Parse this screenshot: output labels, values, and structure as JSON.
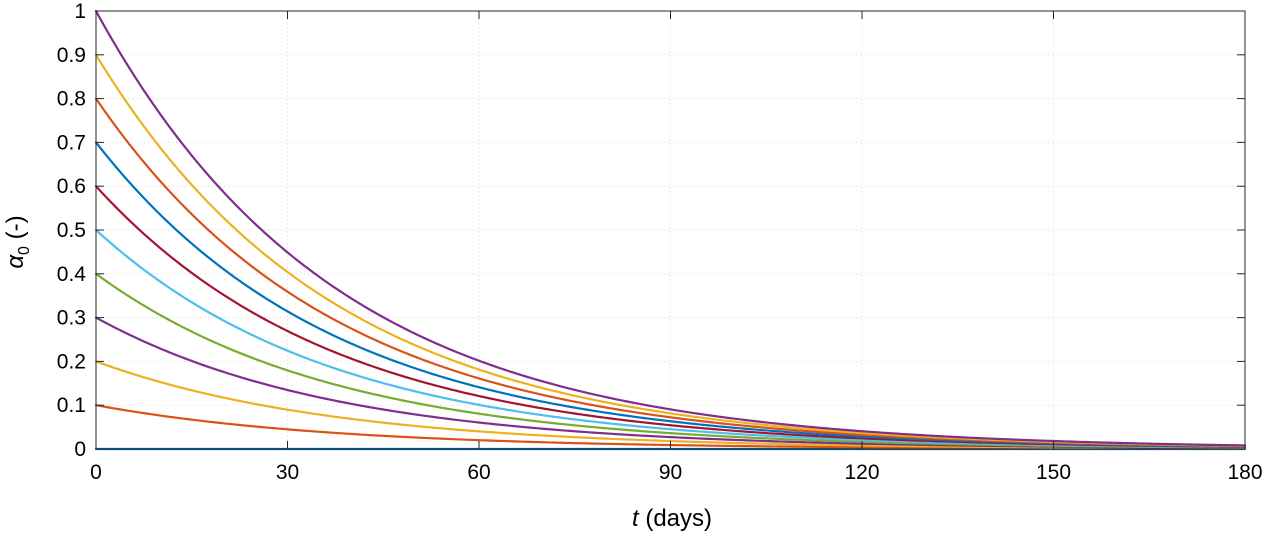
{
  "chart_data": {
    "type": "line",
    "xlabel_italic": "t",
    "xlabel_rest": " (days)",
    "ylabel_symbol": "α",
    "ylabel_sub": "0",
    "ylabel_rest": " (-)",
    "xlim": [
      0,
      180
    ],
    "ylim": [
      0,
      1
    ],
    "xticks": [
      0,
      30,
      60,
      90,
      120,
      150,
      180
    ],
    "yticks": [
      0,
      0.1,
      0.2,
      0.3,
      0.4,
      0.5,
      0.6,
      0.7,
      0.8,
      0.9,
      1
    ],
    "grid": true,
    "decay_rate_per_day": 0.0267,
    "series": [
      {
        "initial": 0.0,
        "color": "#0072BD"
      },
      {
        "initial": 0.1,
        "color": "#D95319"
      },
      {
        "initial": 0.2,
        "color": "#EDB120"
      },
      {
        "initial": 0.3,
        "color": "#7E2F8E"
      },
      {
        "initial": 0.4,
        "color": "#77AC30"
      },
      {
        "initial": 0.5,
        "color": "#4DBEEE"
      },
      {
        "initial": 0.6,
        "color": "#A2142F"
      },
      {
        "initial": 0.7,
        "color": "#0072BD"
      },
      {
        "initial": 0.8,
        "color": "#D95319"
      },
      {
        "initial": 0.9,
        "color": "#EDB120"
      },
      {
        "initial": 1.0,
        "color": "#7E2F8E"
      }
    ]
  }
}
